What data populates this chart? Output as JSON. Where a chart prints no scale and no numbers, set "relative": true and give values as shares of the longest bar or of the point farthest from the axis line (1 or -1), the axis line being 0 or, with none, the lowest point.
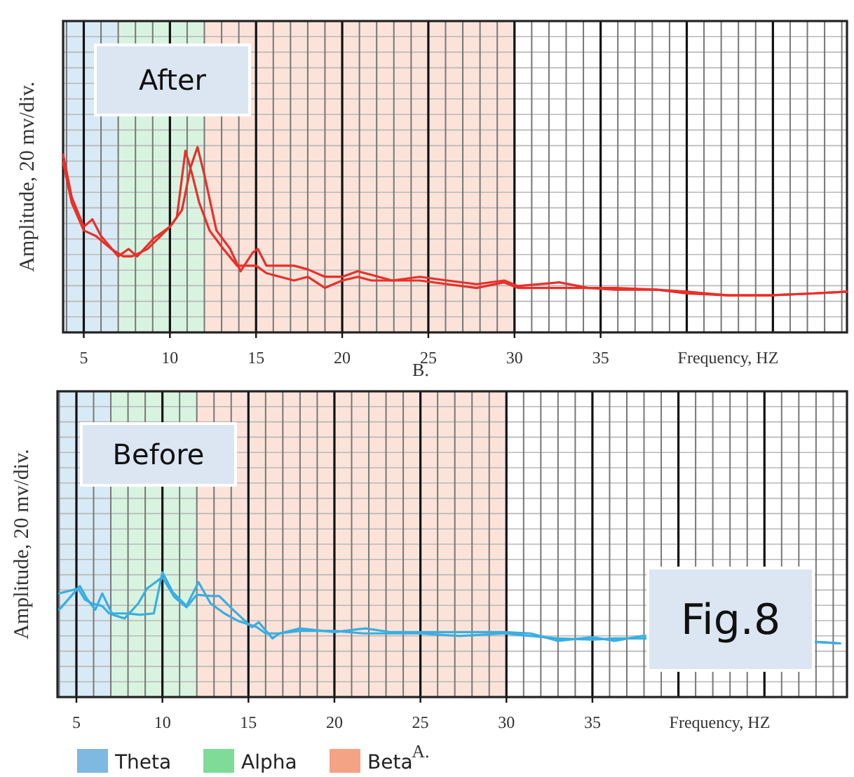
{
  "chart_data": [
    {
      "type": "line",
      "relative": true,
      "xlabel": "Frequency, HZ",
      "ylabel": "Amplitude, 20 mv/div.",
      "annotations": [
        "After",
        "B."
      ],
      "xlim": [
        3.8,
        49.3
      ],
      "xticks": [
        5,
        10,
        15,
        20,
        25,
        30,
        35
      ],
      "tick_labels": "x",
      "grid": true,
      "line_style": "solid",
      "marker": "none",
      "bands": [
        {
          "axis": "x",
          "from": 3.8,
          "to": 7,
          "color": "#7fb8e0"
        },
        {
          "axis": "x",
          "from": 7,
          "to": 12,
          "color": "#7fdc98"
        },
        {
          "axis": "x",
          "from": 12,
          "to": 30,
          "color": "#f5a385"
        }
      ],
      "series": [
        {
          "color": "#e8302a",
          "x": [
            3.8,
            4.3,
            5,
            5.5,
            6.0,
            7.0,
            7.6,
            8.1,
            9.1,
            10.0,
            10.4,
            10.9,
            11.3,
            11.7,
            12.3,
            13.1,
            13.9,
            15,
            15.6,
            16.4,
            17.2,
            18.0,
            19.0,
            20,
            20.9,
            21.7,
            22.9,
            24.5,
            26.1,
            27.8,
            29.4,
            30.2,
            32.6,
            34.3,
            35.9,
            38.3,
            40.0,
            42.4,
            44.8,
            47.3,
            49.3
          ],
          "values": [
            0.96,
            0.73,
            0.57,
            0.61,
            0.52,
            0.41,
            0.45,
            0.41,
            0.51,
            0.57,
            0.62,
            0.98,
            0.85,
            0.7,
            0.55,
            0.45,
            0.36,
            0.36,
            0.32,
            0.3,
            0.28,
            0.3,
            0.24,
            0.28,
            0.3,
            0.28,
            0.28,
            0.28,
            0.26,
            0.24,
            0.27,
            0.24,
            0.24,
            0.24,
            0.23,
            0.23,
            0.21,
            0.2,
            0.2,
            0.21,
            0.22
          ]
        },
        {
          "color": "#e8302a",
          "x": [
            3.8,
            4.3,
            5,
            5.7,
            6.6,
            7.3,
            7.8,
            8.7,
            10.0,
            10.7,
            11.2,
            11.6,
            12.0,
            12.7,
            13.5,
            14.1,
            14.8,
            15.1,
            15.6,
            17.2,
            18.0,
            19.0,
            20,
            20.9,
            21.7,
            22.9,
            24.5,
            26.1,
            27.8,
            29.4,
            30.2,
            32.6,
            34.3,
            35.9,
            38.3,
            40.0,
            42.4,
            44.8,
            47.3,
            49.3
          ],
          "values": [
            0.92,
            0.7,
            0.55,
            0.52,
            0.45,
            0.41,
            0.41,
            0.45,
            0.57,
            0.66,
            0.89,
            1.0,
            0.85,
            0.55,
            0.45,
            0.33,
            0.43,
            0.45,
            0.36,
            0.36,
            0.34,
            0.3,
            0.3,
            0.33,
            0.31,
            0.28,
            0.3,
            0.28,
            0.26,
            0.28,
            0.25,
            0.27,
            0.24,
            0.24,
            0.23,
            0.22,
            0.2,
            0.2,
            0.21,
            0.22
          ]
        }
      ]
    },
    {
      "type": "line",
      "relative": true,
      "xlabel": "Frequency, HZ",
      "ylabel": "Amplitude, 20 mv/div.",
      "annotations": [
        "Before",
        "A.",
        "Fig.8"
      ],
      "xlim": [
        3.9,
        49.8
      ],
      "xticks": [
        5,
        10,
        15,
        20,
        25,
        30,
        35
      ],
      "tick_labels": "x",
      "grid": true,
      "line_style": "solid",
      "marker": "none",
      "legend": "bottom",
      "bands": [
        {
          "axis": "x",
          "from": 3.9,
          "to": 7,
          "color": "#7fb8e0",
          "label": "Theta"
        },
        {
          "axis": "x",
          "from": 7,
          "to": 12,
          "color": "#7fdc98",
          "label": "Alpha"
        },
        {
          "axis": "x",
          "from": 12,
          "to": 30,
          "color": "#f5a385",
          "label": "Beta"
        }
      ],
      "series": [
        {
          "color": "#3aaee0",
          "x": [
            4.0,
            5.1,
            5.5,
            5.9,
            6.5,
            6.9,
            7.9,
            8.7,
            9.5,
            10.0,
            10.6,
            11.4,
            12.1,
            12.8,
            13.6,
            14.4,
            15.5,
            16.0,
            16.8,
            18.0,
            20,
            21.7,
            23.3,
            24.9,
            27.3,
            29.9,
            31.4,
            33.0,
            35.0,
            36.3,
            37.9,
            48.2,
            49.4
          ],
          "values": [
            0.83,
            0.87,
            0.78,
            0.75,
            0.73,
            0.67,
            0.67,
            0.66,
            0.67,
            1.0,
            0.84,
            0.73,
            0.92,
            0.75,
            0.67,
            0.61,
            0.56,
            0.51,
            0.51,
            0.53,
            0.53,
            0.51,
            0.51,
            0.51,
            0.49,
            0.51,
            0.49,
            0.47,
            0.46,
            0.47,
            0.47,
            0.44,
            0.43
          ]
        },
        {
          "color": "#3aaee0",
          "x": [
            4.0,
            4.7,
            5.2,
            5.6,
            6.1,
            6.5,
            7.1,
            7.8,
            8.6,
            9.1,
            10.0,
            10.7,
            11.4,
            12.0,
            12.8,
            13.3,
            14.1,
            15.2,
            15.6,
            16.4,
            16.8,
            18.0,
            20,
            21.8,
            23.3,
            24.9,
            27.3,
            29.9,
            31.4,
            33.0,
            35.0,
            36.3,
            37.9,
            48.2,
            49.4
          ],
          "values": [
            0.7,
            0.81,
            0.89,
            0.79,
            0.7,
            0.83,
            0.66,
            0.63,
            0.75,
            0.87,
            0.96,
            0.8,
            0.72,
            0.82,
            0.81,
            0.81,
            0.7,
            0.56,
            0.6,
            0.47,
            0.51,
            0.55,
            0.52,
            0.55,
            0.52,
            0.52,
            0.52,
            0.52,
            0.51,
            0.45,
            0.48,
            0.45,
            0.49,
            0.44,
            0.43
          ]
        }
      ]
    }
  ]
}
